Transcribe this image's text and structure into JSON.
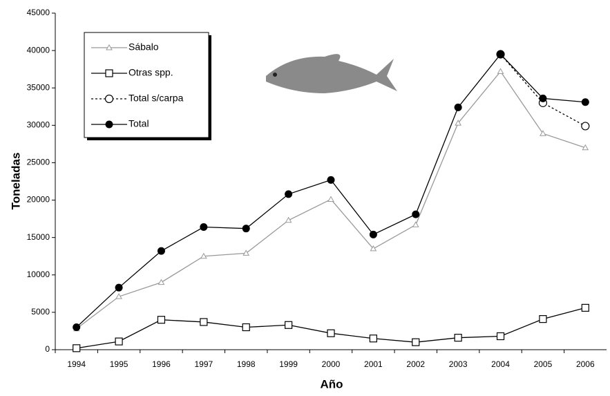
{
  "chart_data": {
    "type": "line",
    "x_label": "Año",
    "y_label": "Toneladas",
    "categories": [
      "1994",
      "1995",
      "1996",
      "1997",
      "1998",
      "1999",
      "2000",
      "2001",
      "2002",
      "2003",
      "2004",
      "2005",
      "2006"
    ],
    "series": [
      {
        "name": "Sábalo",
        "color": "#999999",
        "marker": "triangle",
        "dash": "solid",
        "values": [
          2800,
          7100,
          9000,
          12500,
          12900,
          17300,
          20100,
          13500,
          16700,
          30300,
          37200,
          28900,
          27000
        ]
      },
      {
        "name": "Otras spp.",
        "color": "#000000",
        "marker": "square",
        "dash": "solid",
        "values": [
          200,
          1100,
          4000,
          3700,
          3000,
          3300,
          2200,
          1500,
          1000,
          1600,
          1800,
          4100,
          5600
        ]
      },
      {
        "name": "Total s/carpa",
        "color": "#000000",
        "marker": "circle-open",
        "dash": "dotted",
        "values": [
          null,
          null,
          null,
          null,
          null,
          null,
          null,
          null,
          null,
          null,
          39500,
          33000,
          29900
        ]
      },
      {
        "name": "Total",
        "color": "#000000",
        "marker": "circle",
        "dash": "solid",
        "values": [
          3000,
          8300,
          13200,
          16400,
          16200,
          20800,
          22700,
          15400,
          18100,
          32400,
          39500,
          33600,
          33100
        ]
      }
    ],
    "ylim": [
      0,
      45000
    ],
    "yticks": [
      0,
      5000,
      10000,
      15000,
      20000,
      25000,
      30000,
      35000,
      40000,
      45000
    ],
    "grid": false
  }
}
